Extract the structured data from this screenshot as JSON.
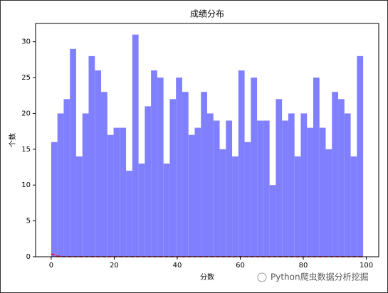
{
  "chart_data": {
    "type": "histogram",
    "title": "成绩分布",
    "x_label": "分数",
    "y_label": "个数",
    "bins": [
      0,
      1.98,
      3.96,
      5.94,
      7.92,
      9.9,
      11.88,
      13.86,
      15.84,
      17.82,
      19.8,
      21.78,
      23.76,
      25.74,
      27.72,
      29.7,
      31.68,
      33.66,
      35.64,
      37.62,
      39.6,
      41.58,
      43.56,
      45.54,
      47.52,
      49.5,
      51.48,
      53.46,
      55.44,
      57.42,
      59.4,
      61.38,
      63.36,
      65.34,
      67.32,
      69.3,
      71.28,
      73.26,
      75.24,
      77.22,
      79.2,
      81.18,
      83.16,
      85.14,
      87.12,
      89.1,
      91.08,
      93.06,
      95.04,
      97.02,
      99
    ],
    "values": [
      16,
      20,
      22,
      29,
      14,
      20,
      28,
      26,
      23,
      17,
      18,
      18,
      12,
      31,
      13,
      21,
      26,
      25,
      13,
      22,
      25,
      23,
      17,
      18,
      23,
      20,
      19,
      15,
      19,
      14,
      26,
      16,
      25,
      19,
      19,
      10,
      22,
      19,
      20,
      14,
      20,
      18,
      25,
      18,
      15,
      23,
      22,
      20,
      14,
      28
    ],
    "color": "#8080ff",
    "curve": {
      "color": "#ff0000",
      "x": [
        0,
        1,
        2,
        3,
        5,
        99
      ],
      "values": [
        0.4,
        0.25,
        0.1,
        0.03,
        0,
        0
      ]
    },
    "xlim": [
      -4.95,
      103.95
    ],
    "ylim": [
      0,
      32.55
    ],
    "xticks": [
      0,
      20,
      40,
      60,
      80,
      100
    ],
    "yticks": [
      0,
      5,
      10,
      15,
      20,
      25,
      30
    ],
    "watermark": "Python爬虫数据分析挖掘"
  }
}
